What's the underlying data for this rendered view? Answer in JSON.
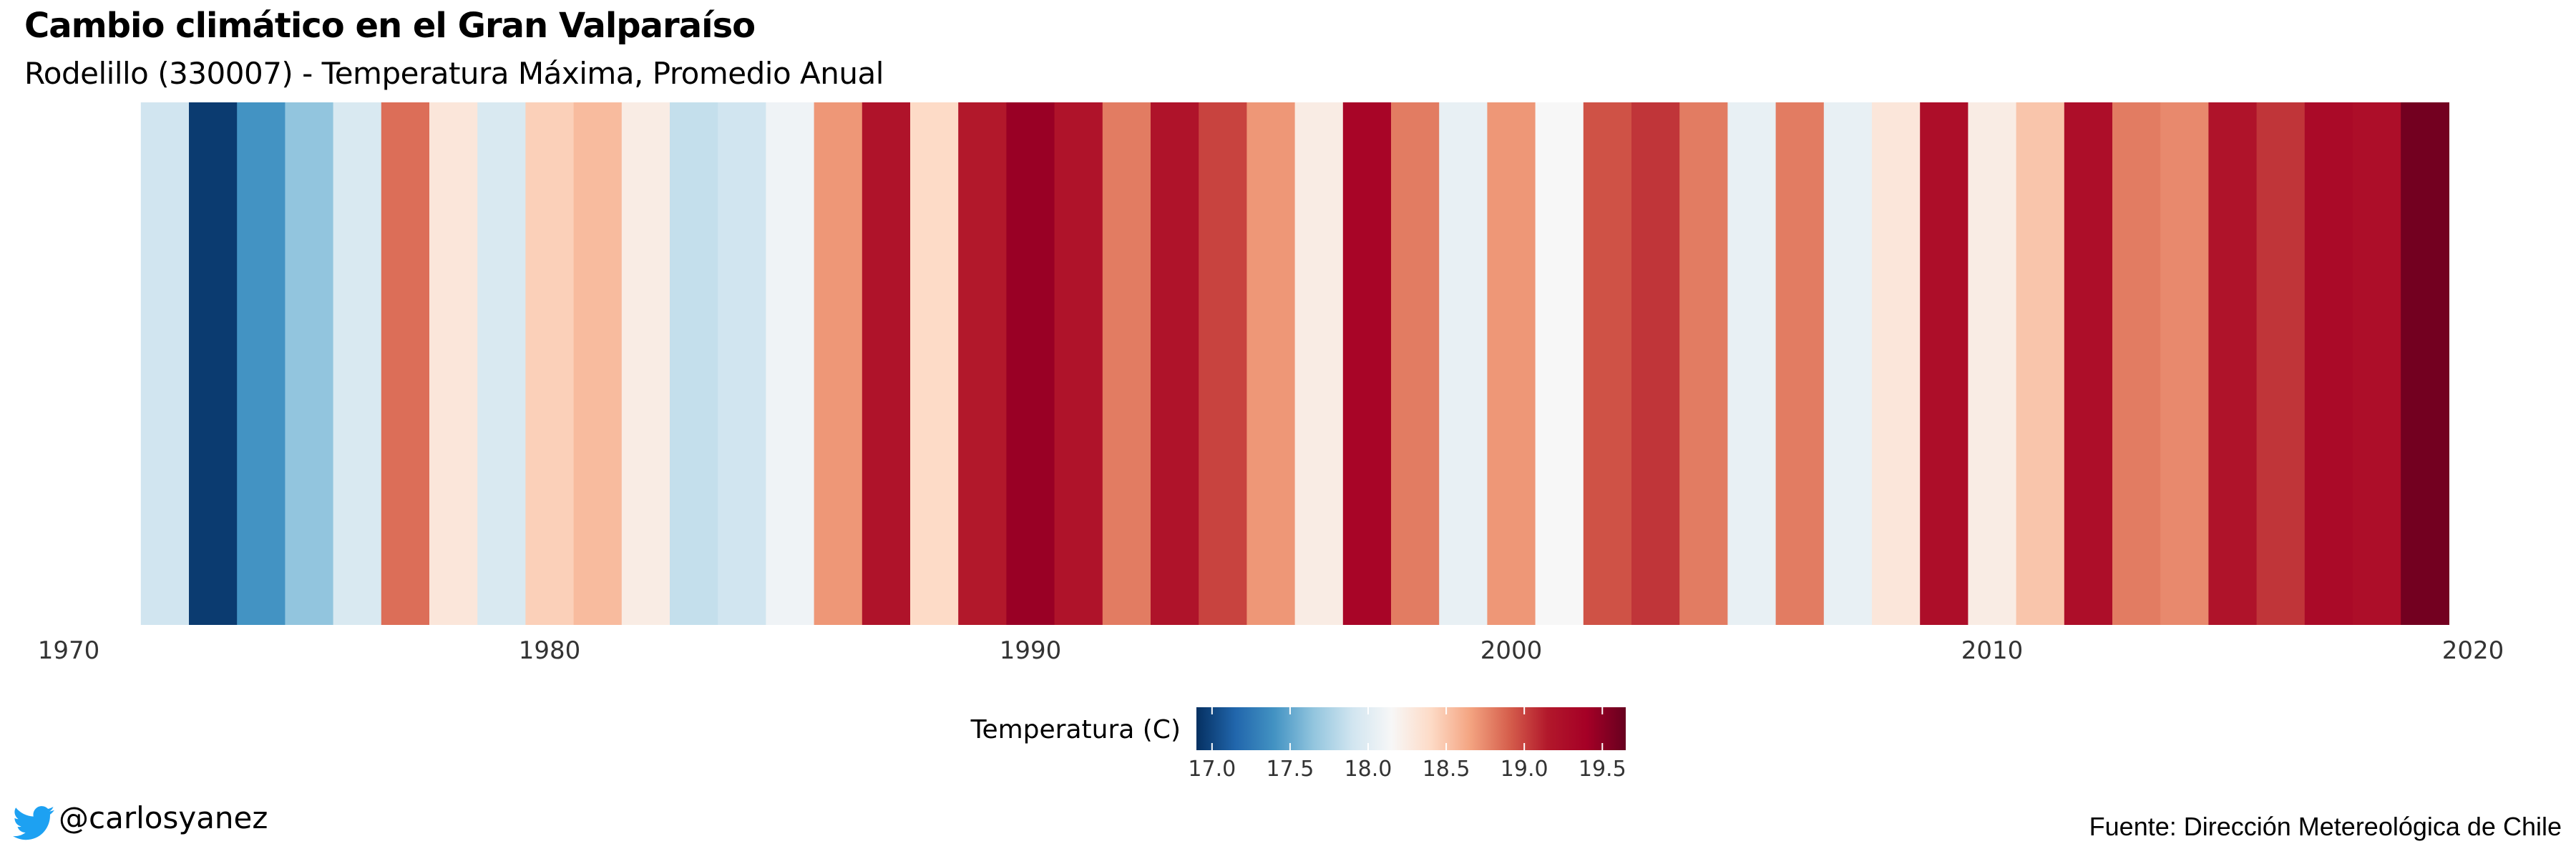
{
  "header": {
    "title": "Cambio climático en el Gran Valparaíso",
    "subtitle": "Rodelillo (330007) - Temperatura Máxima, Promedio Anual"
  },
  "footer": {
    "handle": "@carlosyanez",
    "source": "Fuente: Dirección Metereológica de Chile",
    "twitter_icon": "twitter-bird-icon",
    "twitter_color": "#1da1f2"
  },
  "chart_data": {
    "type": "heatmap",
    "title": "",
    "xlabel": "",
    "ylabel": "",
    "xlim": [
      1970,
      2020
    ],
    "x_ticks": [
      1970,
      1980,
      1990,
      2000,
      2010,
      2020
    ],
    "x_tick_labels": [
      "1970",
      "1980",
      "1990",
      "2000",
      "2010",
      "2020"
    ],
    "grid": false,
    "legend": {
      "title": "Temperatura (C)",
      "placement": "bottom",
      "min": 16.9,
      "max": 19.65,
      "ticks": [
        17.0,
        17.5,
        18.0,
        18.5,
        19.0,
        19.5
      ],
      "tick_labels": [
        "17.0",
        "17.5",
        "18.0",
        "18.5",
        "19.0",
        "19.5"
      ],
      "colors": [
        "#053061",
        "#2166ac",
        "#4393c3",
        "#92c5de",
        "#d1e5f0",
        "#f7f7f7",
        "#fddbc7",
        "#f4a582",
        "#d6604d",
        "#b2182b",
        "#a50026",
        "#67001f"
      ]
    },
    "x": [
      1972,
      1973,
      1974,
      1975,
      1976,
      1977,
      1978,
      1979,
      1980,
      1981,
      1982,
      1983,
      1984,
      1985,
      1986,
      1987,
      1988,
      1989,
      1990,
      1991,
      1992,
      1993,
      1994,
      1995,
      1996,
      1997,
      1998,
      1999,
      2000,
      2001,
      2002,
      2003,
      2004,
      2005,
      2006,
      2007,
      2008,
      2009,
      2010,
      2011,
      2012,
      2013,
      2014,
      2015,
      2016,
      2017,
      2018,
      2019
    ],
    "values": [
      17.9,
      16.95,
      17.4,
      17.65,
      17.95,
      18.85,
      18.3,
      17.95,
      18.45,
      18.55,
      18.25,
      17.85,
      17.9,
      18.1,
      18.7,
      19.2,
      18.4,
      19.15,
      19.45,
      19.2,
      18.8,
      19.2,
      19.0,
      18.7,
      18.25,
      19.35,
      18.8,
      18.05,
      18.7,
      18.15,
      18.95,
      19.05,
      18.8,
      18.05,
      18.8,
      18.05,
      18.3,
      19.25,
      18.25,
      18.5,
      19.25,
      18.8,
      18.75,
      19.2,
      19.05,
      19.3,
      19.25,
      19.6
    ]
  }
}
